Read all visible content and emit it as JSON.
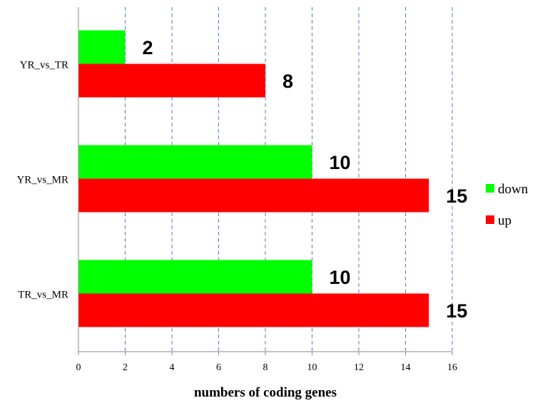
{
  "chart_data": {
    "type": "bar",
    "orientation": "horizontal",
    "categories": [
      "YR_vs_TR",
      "YR_vs_MR",
      "TR_vs_MR"
    ],
    "series": [
      {
        "name": "down",
        "color": "#00ff00",
        "values": [
          2,
          10,
          10
        ]
      },
      {
        "name": "up",
        "color": "#ff0000",
        "values": [
          8,
          15,
          15
        ]
      }
    ],
    "xlabel": "numbers  of  coding genes",
    "ylabel": "",
    "xlim": [
      0,
      16
    ],
    "xticks": [
      0,
      2,
      4,
      6,
      8,
      10,
      12,
      14,
      16
    ],
    "grid": "vertical dashed",
    "legend": "right",
    "data_labels": true
  }
}
